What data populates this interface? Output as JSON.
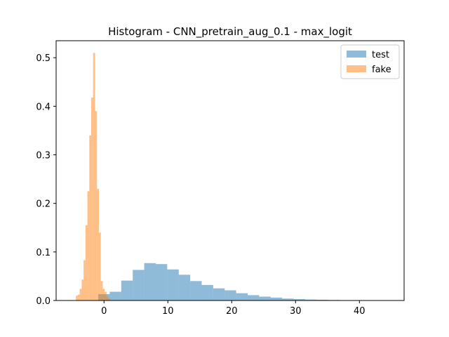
{
  "chart_data": {
    "type": "bar",
    "title": "Histogram - CNN_pretrain_aug_0.1 - max_logit",
    "xlabel": "",
    "ylabel": "",
    "xlim": [
      -7.5,
      47.0
    ],
    "ylim": [
      0,
      0.535
    ],
    "xticks": [
      0,
      10,
      20,
      30,
      40
    ],
    "xtick_labels": [
      "0",
      "10",
      "20",
      "30",
      "40"
    ],
    "yticks": [
      0.0,
      0.1,
      0.2,
      0.3,
      0.4,
      0.5
    ],
    "ytick_labels": [
      "0.0",
      "0.1",
      "0.2",
      "0.3",
      "0.4",
      "0.5"
    ],
    "legend_position": "top-right",
    "series": [
      {
        "name": "test",
        "color": "#1f77b4",
        "alpha": 0.5,
        "bins": [
          {
            "x0": -0.9,
            "x1": 0.9,
            "y": 0.013
          },
          {
            "x0": 0.9,
            "x1": 2.7,
            "y": 0.018
          },
          {
            "x0": 2.7,
            "x1": 4.5,
            "y": 0.041
          },
          {
            "x0": 4.5,
            "x1": 6.3,
            "y": 0.063
          },
          {
            "x0": 6.3,
            "x1": 8.1,
            "y": 0.077
          },
          {
            "x0": 8.1,
            "x1": 9.9,
            "y": 0.075
          },
          {
            "x0": 9.9,
            "x1": 11.7,
            "y": 0.064
          },
          {
            "x0": 11.7,
            "x1": 13.5,
            "y": 0.053
          },
          {
            "x0": 13.5,
            "x1": 15.3,
            "y": 0.04
          },
          {
            "x0": 15.3,
            "x1": 17.1,
            "y": 0.032
          },
          {
            "x0": 17.1,
            "x1": 18.9,
            "y": 0.025
          },
          {
            "x0": 18.9,
            "x1": 20.7,
            "y": 0.021
          },
          {
            "x0": 20.7,
            "x1": 22.5,
            "y": 0.015
          },
          {
            "x0": 22.5,
            "x1": 24.3,
            "y": 0.011
          },
          {
            "x0": 24.3,
            "x1": 26.1,
            "y": 0.008
          },
          {
            "x0": 26.1,
            "x1": 27.9,
            "y": 0.006
          },
          {
            "x0": 27.9,
            "x1": 29.7,
            "y": 0.004
          },
          {
            "x0": 29.7,
            "x1": 31.5,
            "y": 0.003
          },
          {
            "x0": 31.5,
            "x1": 33.3,
            "y": 0.002
          },
          {
            "x0": 33.3,
            "x1": 35.1,
            "y": 0.0015
          },
          {
            "x0": 35.1,
            "x1": 36.9,
            "y": 0.001
          },
          {
            "x0": 36.9,
            "x1": 38.7,
            "y": 0.0005
          },
          {
            "x0": 38.7,
            "x1": 40.5,
            "y": 0.0003
          },
          {
            "x0": 40.5,
            "x1": 42.3,
            "y": 0.0002
          },
          {
            "x0": 42.3,
            "x1": 44.1,
            "y": 0.0001
          },
          {
            "x0": 44.1,
            "x1": 45.4,
            "y": 0.0001
          }
        ]
      },
      {
        "name": "fake",
        "color": "#ff7f0e",
        "alpha": 0.5,
        "bins": [
          {
            "x0": -4.4,
            "x1": -4.1,
            "y": 0.01
          },
          {
            "x0": -4.1,
            "x1": -3.8,
            "y": 0.012
          },
          {
            "x0": -3.8,
            "x1": -3.5,
            "y": 0.024
          },
          {
            "x0": -3.5,
            "x1": -3.2,
            "y": 0.043
          },
          {
            "x0": -3.2,
            "x1": -2.9,
            "y": 0.083
          },
          {
            "x0": -2.9,
            "x1": -2.6,
            "y": 0.155
          },
          {
            "x0": -2.6,
            "x1": -2.3,
            "y": 0.225
          },
          {
            "x0": -2.3,
            "x1": -2.0,
            "y": 0.34
          },
          {
            "x0": -2.0,
            "x1": -1.7,
            "y": 0.418
          },
          {
            "x0": -1.7,
            "x1": -1.4,
            "y": 0.51
          },
          {
            "x0": -1.4,
            "x1": -1.1,
            "y": 0.39
          },
          {
            "x0": -1.1,
            "x1": -0.8,
            "y": 0.23
          },
          {
            "x0": -0.8,
            "x1": -0.5,
            "y": 0.14
          },
          {
            "x0": -0.5,
            "x1": -0.2,
            "y": 0.04
          },
          {
            "x0": -0.2,
            "x1": 0.1,
            "y": 0.024
          },
          {
            "x0": 0.1,
            "x1": 0.4,
            "y": 0.018
          },
          {
            "x0": 0.4,
            "x1": 0.7,
            "y": 0.008
          },
          {
            "x0": 0.7,
            "x1": 1.0,
            "y": 0.004
          }
        ]
      }
    ]
  }
}
